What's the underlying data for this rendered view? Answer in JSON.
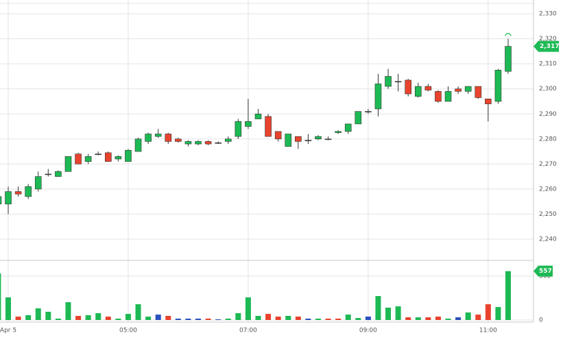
{
  "chart_data": {
    "type": "candlestick",
    "categories": [
      null,
      "Apr 5",
      null,
      null,
      null,
      null,
      null,
      null,
      null,
      null,
      null,
      null,
      null,
      "05:00",
      null,
      null,
      null,
      null,
      null,
      null,
      null,
      null,
      null,
      null,
      null,
      "07:00",
      null,
      null,
      null,
      null,
      null,
      null,
      null,
      null,
      null,
      null,
      null,
      "09:00",
      null,
      null,
      null,
      null,
      null,
      null,
      null,
      null,
      null,
      null,
      null,
      "11:00",
      null,
      null
    ],
    "open": [
      2254,
      2254,
      2259,
      2257,
      2260,
      2266,
      2265,
      2267,
      2274,
      2271,
      2274,
      2274.5,
      2272,
      2271,
      2275,
      2279,
      2281,
      2282,
      2280,
      2278,
      2278,
      2279,
      2278.5,
      2279,
      2281,
      2285,
      2288,
      2289,
      2283,
      2277,
      2281,
      2279.5,
      2280,
      2280,
      2282.5,
      2283,
      2286,
      2291,
      2292,
      2301,
      2303,
      2303.5,
      2297,
      2301,
      2299,
      2295,
      2300,
      2299,
      2301,
      2296,
      2295,
      2307
    ],
    "high": [
      2258,
      2261,
      2261,
      2262,
      2267,
      2268,
      2267.5,
      2273,
      2274.5,
      2274,
      2275,
      2275,
      2273.5,
      2276,
      2280.5,
      2282.5,
      2284,
      2282.5,
      2280.5,
      2279.5,
      2279.5,
      2279.5,
      2279,
      2281,
      2288,
      2296,
      2292,
      2290,
      2283,
      2282,
      2281,
      2282,
      2281.5,
      2281,
      2283.5,
      2286,
      2291,
      2292,
      2306,
      2308,
      2306,
      2304,
      2302.5,
      2302,
      2299.5,
      2301,
      2301,
      2301,
      2301,
      2296,
      2308,
      2320
    ],
    "low": [
      2253,
      2250,
      2257,
      2256,
      2259,
      2265,
      2265,
      2267,
      2270,
      2270,
      2273.5,
      2271,
      2271,
      2271,
      2275,
      2278,
      2280.5,
      2278,
      2278.5,
      2277,
      2277.5,
      2277.5,
      2278,
      2278,
      2280,
      2284,
      2288,
      2281,
      2279,
      2277,
      2276,
      2278,
      2279.5,
      2279.5,
      2282,
      2282,
      2286,
      2290,
      2289,
      2300,
      2299,
      2297,
      2296.5,
      2299,
      2294.5,
      2295,
      2298,
      2298,
      2296,
      2287,
      2294,
      2306
    ],
    "close": [
      2257,
      2259,
      2258,
      2261,
      2265,
      2266,
      2267,
      2273,
      2270,
      2273,
      2274,
      2271,
      2273,
      2275.5,
      2280,
      2282,
      2282,
      2279,
      2279,
      2279,
      2279,
      2278,
      2278.5,
      2280,
      2287,
      2287,
      2290,
      2281,
      2280,
      2282,
      2279,
      2279.5,
      2281,
      2280,
      2283,
      2286,
      2291,
      2291,
      2302,
      2305,
      2303,
      2298,
      2301,
      2299.5,
      2295,
      2299,
      2299,
      2301,
      2296.5,
      2294,
      2307.5,
      2317
    ],
    "last_label": "2,317",
    "up_color": "#1db954",
    "down_color": "#e8432e",
    "neutral_color": "#444444",
    "ylim": [
      2231.5,
      2335.5
    ],
    "yticks": [
      {
        "value": 2240,
        "label": "2,240"
      },
      {
        "value": 2250,
        "label": "2,250"
      },
      {
        "value": 2260,
        "label": "2,260"
      },
      {
        "value": 2270,
        "label": "2,270"
      },
      {
        "value": 2280,
        "label": "2,280"
      },
      {
        "value": 2290,
        "label": "2,290"
      },
      {
        "value": 2300,
        "label": "2,300"
      },
      {
        "value": 2310,
        "label": "2,310"
      },
      {
        "value": 2320,
        "label": "2,320"
      },
      {
        "value": 2330,
        "label": "2,330"
      }
    ],
    "grid": true,
    "volume": {
      "values": [
        531,
        258,
        39,
        55,
        133,
        94,
        16,
        203,
        47,
        55,
        78,
        39,
        16,
        70,
        180,
        39,
        62,
        47,
        16,
        16,
        16,
        16,
        8,
        16,
        78,
        258,
        47,
        70,
        39,
        47,
        39,
        16,
        16,
        16,
        16,
        62,
        23,
        39,
        273,
        141,
        156,
        31,
        31,
        31,
        39,
        16,
        31,
        86,
        62,
        180,
        148,
        557
      ],
      "colors": [
        "g",
        "g",
        "r",
        "g",
        "g",
        "g",
        "g",
        "g",
        "r",
        "g",
        "g",
        "r",
        "g",
        "g",
        "g",
        "g",
        "b",
        "r",
        "b",
        "b",
        "b",
        "r",
        "b",
        "g",
        "g",
        "g",
        "g",
        "r",
        "r",
        "g",
        "r",
        "b",
        "g",
        "r",
        "r",
        "g",
        "g",
        "b",
        "g",
        "g",
        "g",
        "r",
        "g",
        "r",
        "r",
        "g",
        "b",
        "g",
        "r",
        "r",
        "g",
        "g"
      ],
      "palette": {
        "g": "#1db954",
        "r": "#e8432e",
        "b": "#2a52be"
      },
      "ylim": [
        0,
        656
      ],
      "yticks": [
        0,
        500
      ]
    }
  }
}
